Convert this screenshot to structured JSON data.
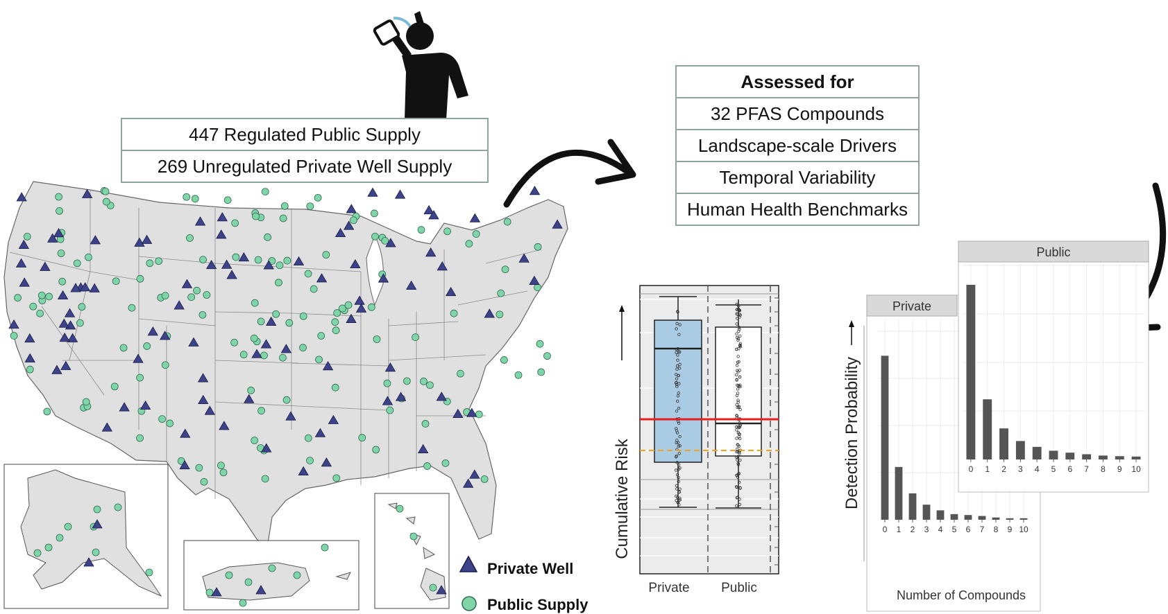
{
  "sources": {
    "rows": [
      "447 Regulated Public Supply",
      "269 Unregulated Private Well Supply"
    ]
  },
  "assessed": {
    "title": "Assessed for",
    "rows": [
      "32 PFAS Compounds",
      "Landscape-scale Drivers",
      "Temporal Variability",
      "Human Health Benchmarks"
    ]
  },
  "legend": {
    "private_label": "Private Well",
    "public_label": "Public Supply",
    "private_color": "#3c4388",
    "public_color": "#7fd4a8"
  },
  "boxplot": {
    "ylabel": "Cumulative Risk",
    "categories": [
      "Private",
      "Public"
    ],
    "private_color": "#a9cbe3",
    "public_color": "#ffffff",
    "benchmark_color": "#e81e1e",
    "threshold_color": "#f2a31a"
  },
  "chart_data": [
    {
      "type": "bar",
      "title": "Private",
      "xlabel": "Number of Compounds",
      "ylabel": "Detection Probability",
      "categories": [
        "0",
        "1",
        "2",
        "3",
        "4",
        "5",
        "6",
        "7",
        "8",
        "9",
        "10"
      ],
      "values": [
        0.87,
        0.28,
        0.14,
        0.08,
        0.05,
        0.03,
        0.025,
        0.02,
        0.012,
        0.008,
        0.008
      ]
    },
    {
      "type": "bar",
      "title": "Public",
      "xlabel": "",
      "ylabel": "",
      "categories": [
        "0",
        "1",
        "2",
        "3",
        "4",
        "5",
        "6",
        "7",
        "8",
        "9",
        "10"
      ],
      "values": [
        0.9,
        0.31,
        0.16,
        0.095,
        0.065,
        0.045,
        0.035,
        0.027,
        0.02,
        0.017,
        0.015
      ]
    }
  ]
}
